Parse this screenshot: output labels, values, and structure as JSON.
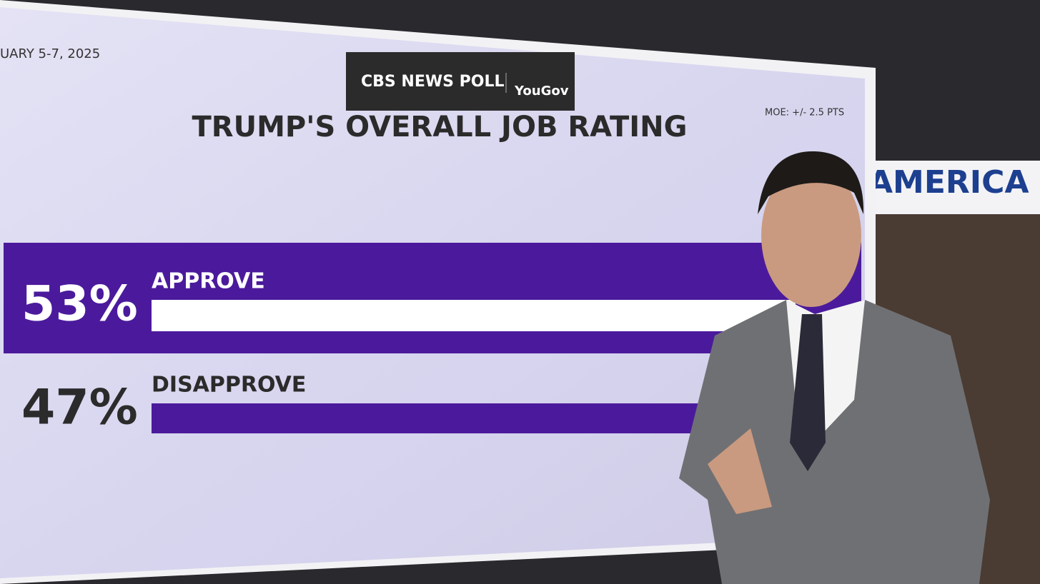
{
  "chart_data": {
    "type": "bar",
    "orientation": "horizontal",
    "title": "TRUMP'S OVERALL JOB RATING",
    "source": "CBS NEWS POLL",
    "partner": "YouGov",
    "date": "UARY 5-7, 2025",
    "note": "MOE: +/- 2.5 PTS",
    "backdrop_sign": "AMERICA DE",
    "categories": [
      "APPROVE",
      "DISAPPROVE"
    ],
    "values": [
      53,
      47
    ],
    "value_labels": [
      "53%",
      "47%"
    ],
    "color": "#4b1a9c",
    "highlight": 0
  }
}
